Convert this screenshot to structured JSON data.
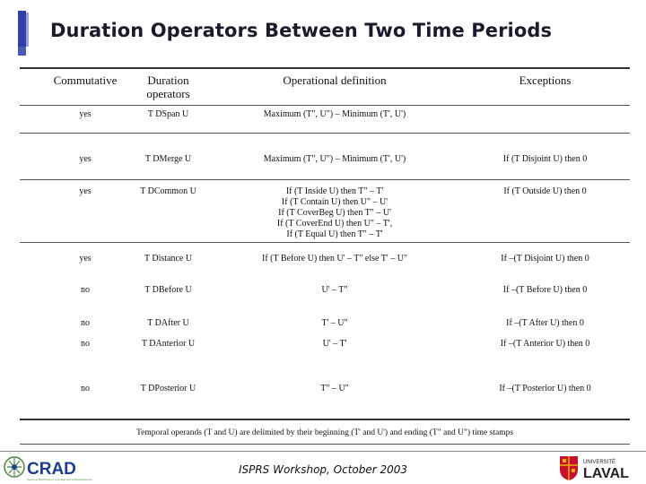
{
  "title": "Duration Operators Between Two Time Periods",
  "headers": {
    "commutative": "Commutative",
    "duration_operators": [
      "Duration",
      "operators"
    ],
    "operational_definition": "Operational definition",
    "exceptions": "Exceptions"
  },
  "rows": [
    {
      "commutative": "yes",
      "operator": "T DSpan U",
      "definition": [
        "Maximum (T\", U\") – Minimum (T', U')"
      ],
      "exception": ""
    },
    {
      "commutative": "yes",
      "operator": "T DMerge U",
      "definition": [
        "Maximum (T\", U\") – Minimum (T', U')"
      ],
      "exception": "If (T Disjoint U) then 0"
    },
    {
      "commutative": "yes",
      "operator": "T DCommon U",
      "definition": [
        "If (T Inside U) then T\" – T'",
        "If (T Contain U) then U\" – U'",
        "If (T CoverBeg U) then T\" – U'",
        "If (T CoverEnd U) then U\" – T',",
        "If (T Equal U) then T\" – T'"
      ],
      "exception": "If (T Outside U) then 0"
    },
    {
      "commutative": "yes",
      "operator": "T Distance U",
      "definition": [
        "If (T Before U) then U' – T\" else T' – U\""
      ],
      "exception": "If –(T Disjoint U) then 0"
    },
    {
      "commutative": "no",
      "operator": "T DBefore U",
      "definition": [
        "U' – T\""
      ],
      "exception": "If –(T Before U) then 0"
    },
    {
      "commutative": "no",
      "operator": "T DAfter U",
      "definition": [
        "T' – U\""
      ],
      "exception": "If –(T After U) then 0"
    },
    {
      "commutative": "no",
      "operator": "T DAnterior U",
      "definition": [
        "U' – T'"
      ],
      "exception": "If –(T Anterior U) then 0"
    },
    {
      "commutative": "no",
      "operator": "T DPosterior U",
      "definition": [
        "T\" – U\""
      ],
      "exception": "If –(T Posterior U) then 0"
    }
  ],
  "footnote": "Temporal operands (T and U) are delimited by their beginning (T' and U') and ending (T\" and U\") time stamps",
  "footer": {
    "workshop": "ISPRS Workshop, October 2003",
    "left_logo_text": "CRAD",
    "left_logo_subtext": "Centre de Recherche en Aménagement et Développement",
    "right_logo_top": "UNIVERSITÉ",
    "right_logo_main": "LAVAL"
  },
  "colors": {
    "accent_bar": "#2f3ea8",
    "crad_blue": "#1e3f8f",
    "crad_green": "#4a8a3a",
    "laval_red": "#c8102e",
    "laval_gold": "#e8b400"
  }
}
